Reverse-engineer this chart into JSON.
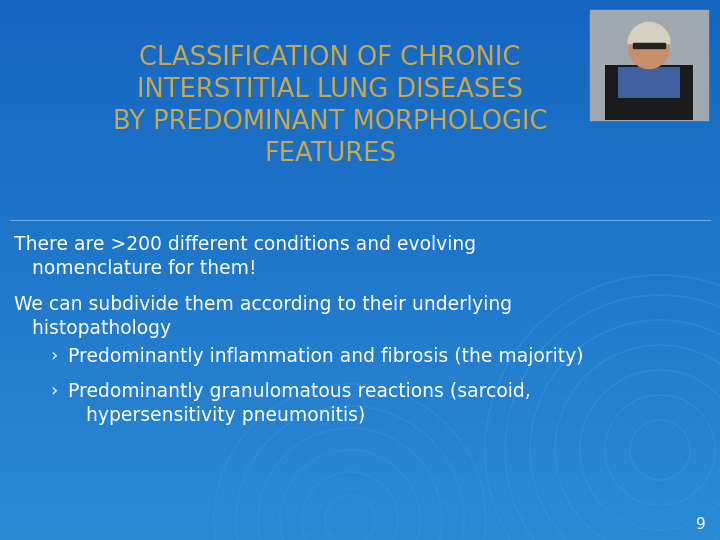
{
  "bg_color_top": "#2a8ad4",
  "bg_color_bottom": "#1565c0",
  "title_lines": [
    "CLASSIFICATION OF CHRONIC",
    "INTERSTITIAL LUNG DISEASES",
    "BY PREDOMINANT MORPHOLOGIC",
    "FEATURES"
  ],
  "title_color": "#c8a84b",
  "title_fontsize": 18.5,
  "body_color": "#ffffff",
  "body_fontsize": 13.5,
  "bullet_fontsize": 13.5,
  "page_number": "9",
  "paragraph1_line1": "There are >200 different conditions and evolving",
  "paragraph1_line2": "   nomenclature for them!",
  "paragraph2_line1": "We can subdivide them according to their underlying",
  "paragraph2_line2": "   histopathology",
  "bullet1": "Predominantly inflammation and fibrosis (the majority)",
  "bullet2_line1": "Predominantly granulomatous reactions (sarcoid,",
  "bullet2_line2": "hypersensitivity pneumonitis)",
  "circle_color": "#3a9de4",
  "photo_bg": "#a0a8b0",
  "photo_jacket": "#1a1a1a",
  "photo_hair": "#d8d0c0",
  "photo_skin": "#c8906a",
  "photo_scarf": "#4060a0",
  "photo_glasses": "#222222"
}
